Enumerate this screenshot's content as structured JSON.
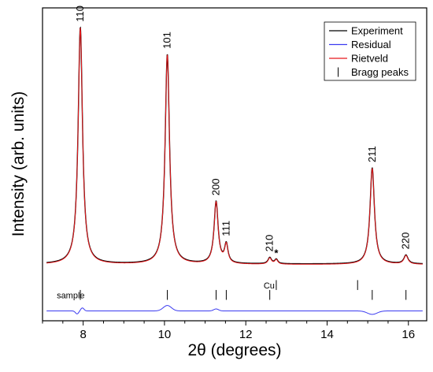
{
  "chart_data": {
    "type": "line",
    "title": "",
    "xlabel": "2θ (degrees)",
    "ylabel": "Intensity (arb. units)",
    "xlim": [
      7,
      16.45
    ],
    "ylim": [
      -0.2,
      1.07
    ],
    "x_ticks": [
      8,
      10,
      12,
      14,
      16
    ],
    "y_ticks_visible": false,
    "grid": false,
    "legend": {
      "position": "top-right",
      "entries": [
        {
          "label": "Experiment",
          "color": "#000000",
          "marker": "line"
        },
        {
          "label": "Residual",
          "color": "#3a3af0",
          "marker": "line"
        },
        {
          "label": "Rietveld",
          "color": "#e8191c",
          "marker": "line"
        },
        {
          "label": "Bragg peaks",
          "color": "#000000",
          "marker": "tick"
        }
      ]
    },
    "baseline": 0.03,
    "peaks": [
      {
        "label": "110",
        "position": 7.93,
        "height": 0.96,
        "width": 0.065
      },
      {
        "label": "101",
        "position": 10.07,
        "height": 0.85,
        "width": 0.065
      },
      {
        "label": "200",
        "position": 11.27,
        "height": 0.25,
        "width": 0.06
      },
      {
        "label": "111",
        "position": 11.52,
        "height": 0.075,
        "width": 0.05
      },
      {
        "label": "210",
        "position": 12.59,
        "height": 0.025,
        "width": 0.05
      },
      {
        "label": "*",
        "position": 12.75,
        "height": 0.018,
        "width": 0.045
      },
      {
        "label": "211",
        "position": 15.11,
        "height": 0.39,
        "width": 0.065
      },
      {
        "label": "220",
        "position": 15.94,
        "height": 0.035,
        "width": 0.06
      }
    ],
    "bragg_positions": [
      7.93,
      10.07,
      11.27,
      11.52,
      12.59,
      15.11,
      15.94
    ],
    "bragg_row_label": "sample",
    "cu_bragg_positions": [
      12.75,
      14.75
    ],
    "cu_label": "Cu",
    "residual": {
      "offset": -0.16,
      "dips": [
        {
          "position": 7.85,
          "depth": 0.012,
          "width": 0.04
        },
        {
          "position": 7.98,
          "depth": -0.012,
          "width": 0.04
        },
        {
          "position": 10.07,
          "depth": -0.022,
          "width": 0.1
        },
        {
          "position": 11.27,
          "depth": -0.008,
          "width": 0.06
        },
        {
          "position": 15.11,
          "depth": 0.014,
          "width": 0.12
        }
      ]
    },
    "colors": {
      "experiment": "#000000",
      "rietveld": "#e8191c",
      "residual": "#3a3af0"
    }
  }
}
